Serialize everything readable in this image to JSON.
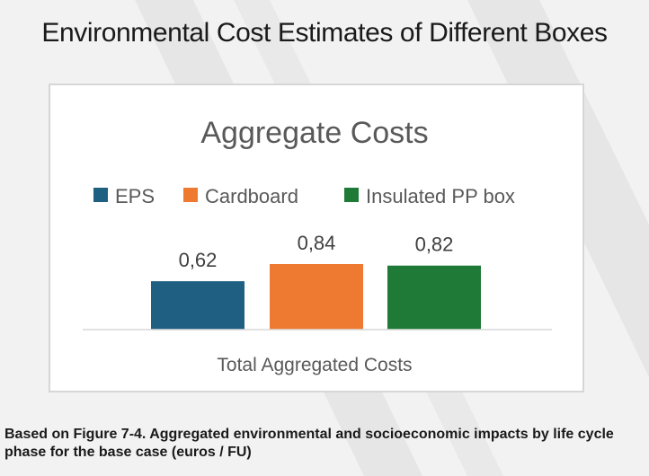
{
  "slide": {
    "title": "Environmental Cost Estimates of Different Boxes",
    "caption": "Based on Figure 7-4. Aggregated environmental and socioeconomic impacts by life cycle phase for the base case (euros / FU)"
  },
  "colors": {
    "background": "#f2f2f2",
    "stripes": "#e4e4e4",
    "eps": "#1f5f82",
    "cardboard": "#ee7a32",
    "insulated_pp": "#1e7a36"
  },
  "chart_data": {
    "type": "bar",
    "title": "Aggregate Costs",
    "categories": [
      "Total Aggregated Costs"
    ],
    "series": [
      {
        "name": "EPS",
        "values": [
          0.62
        ],
        "label": "0,62",
        "color": "#1f5f82"
      },
      {
        "name": "Cardboard",
        "values": [
          0.84
        ],
        "label": "0,84",
        "color": "#ee7a32"
      },
      {
        "name": "Insulated PP box",
        "values": [
          0.82
        ],
        "label": "0,82",
        "color": "#1e7a36"
      }
    ],
    "xlabel": "",
    "ylabel": "",
    "ylim": [
      0,
      0.84
    ],
    "grid": false,
    "legend": "top"
  }
}
